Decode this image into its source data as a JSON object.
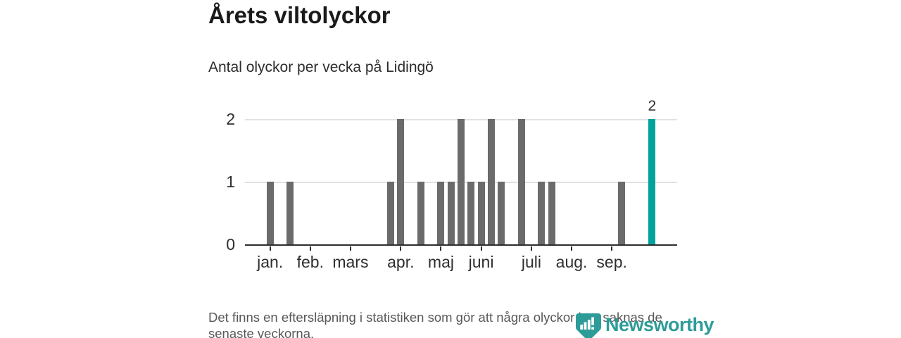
{
  "header": {
    "title": "Årets viltolyckor",
    "subtitle": "Antal olyckor per vecka på Lidingö"
  },
  "footer": {
    "line1": "Det finns en eftersläpning i statistiken som gör att några olyckor kan saknas de",
    "line2": "senaste veckorna."
  },
  "logo": {
    "text": "Newsworthy",
    "color": "#2d9c99",
    "icon": "bar-chart-marker-icon"
  },
  "chart_data": {
    "type": "bar",
    "title": "Årets viltolyckor",
    "subtitle": "Antal olyckor per vecka på Lidingö",
    "x_unit": "week",
    "n_weeks": 43,
    "values": [
      0,
      0,
      1,
      0,
      1,
      0,
      0,
      0,
      0,
      0,
      0,
      0,
      0,
      0,
      1,
      2,
      0,
      1,
      0,
      1,
      1,
      2,
      1,
      1,
      2,
      1,
      0,
      2,
      0,
      1,
      1,
      0,
      0,
      0,
      0,
      0,
      0,
      1,
      0,
      0,
      2,
      0,
      0
    ],
    "highlight": {
      "index": 40,
      "value": 2,
      "label": "2"
    },
    "x_ticks": [
      {
        "slot": 2,
        "label": "jan."
      },
      {
        "slot": 6,
        "label": "feb."
      },
      {
        "slot": 10,
        "label": "mars"
      },
      {
        "slot": 15,
        "label": "apr."
      },
      {
        "slot": 19,
        "label": "maj"
      },
      {
        "slot": 23,
        "label": "juni"
      },
      {
        "slot": 28,
        "label": "juli"
      },
      {
        "slot": 32,
        "label": "aug."
      },
      {
        "slot": 36,
        "label": "sep."
      }
    ],
    "y_ticks": [
      0,
      1,
      2
    ],
    "ylim": [
      0,
      2
    ],
    "grid": true,
    "legend": "none",
    "colors": {
      "bar": "#6b6b6b",
      "highlight": "#00a39c",
      "grid": "#e1e1e1",
      "axis": "#2e2e2e",
      "text": "#2e2e2e"
    }
  }
}
